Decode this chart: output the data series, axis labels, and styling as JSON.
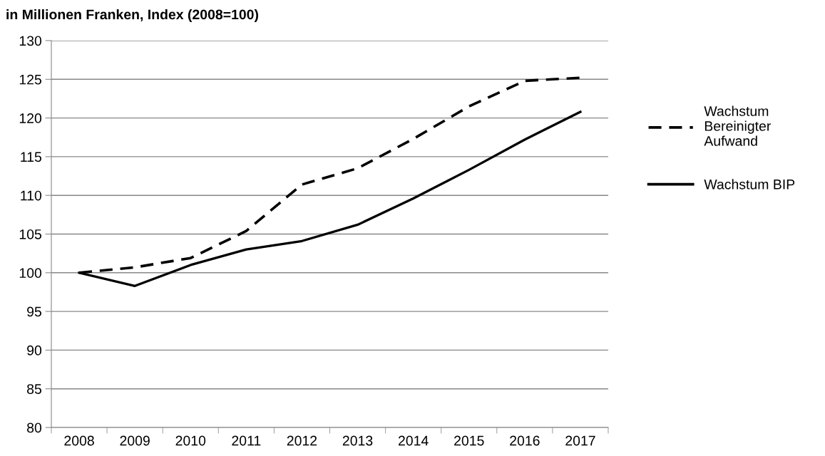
{
  "chart_data": {
    "type": "line",
    "title": "in Millionen Franken, Index (2008=100)",
    "categories": [
      "2008",
      "2009",
      "2010",
      "2011",
      "2012",
      "2013",
      "2014",
      "2015",
      "2016",
      "2017"
    ],
    "series": [
      {
        "name": "Wachstum\nBereinigter\nAufwand",
        "color": "#000000",
        "line_style": "dashed",
        "values": [
          100,
          100.7,
          101.9,
          105.4,
          111.4,
          113.5,
          117.3,
          121.5,
          124.8,
          125.2
        ]
      },
      {
        "name": "Wachstum BIP",
        "color": "#000000",
        "line_style": "solid",
        "values": [
          100,
          98.3,
          101.0,
          103.0,
          104.1,
          106.2,
          109.6,
          113.3,
          117.2,
          120.8
        ]
      }
    ],
    "ylim": [
      80,
      130
    ],
    "yticks": [
      80,
      85,
      90,
      95,
      100,
      105,
      110,
      115,
      120,
      125,
      130
    ],
    "grid": "y",
    "legend": "right",
    "marker": "none"
  }
}
